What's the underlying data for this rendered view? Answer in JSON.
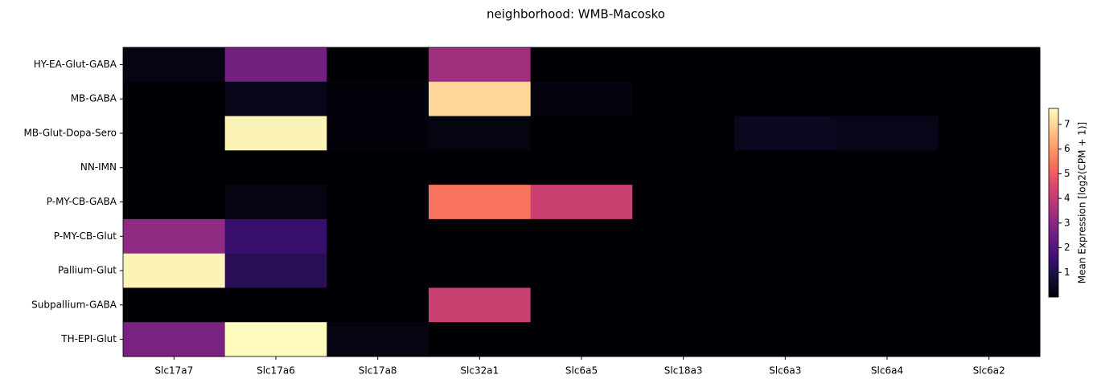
{
  "chart_data": {
    "type": "heatmap",
    "title": "neighborhood: WMB-Macosko",
    "columns": [
      "Slc17a7",
      "Slc17a6",
      "Slc17a8",
      "Slc32a1",
      "Slc6a5",
      "Slc18a3",
      "Slc6a3",
      "Slc6a4",
      "Slc6a2"
    ],
    "rows": [
      "HY-EA-Glut-GABA",
      "MB-GABA",
      "MB-Glut-Dopa-Sero",
      "NN-IMN",
      "P-MY-CB-GABA",
      "P-MY-CB-Glut",
      "Pallium-Glut",
      "Subpallium-GABA",
      "TH-EPI-Glut"
    ],
    "values": [
      [
        0.2,
        2.6,
        0,
        3.4,
        0,
        0,
        0,
        0,
        0
      ],
      [
        0,
        0.3,
        0.1,
        7.0,
        0.15,
        0,
        0,
        0,
        0
      ],
      [
        0,
        7.5,
        0.1,
        0.2,
        0,
        0,
        0.4,
        0.3,
        0
      ],
      [
        0,
        0,
        0,
        0,
        0,
        0,
        0,
        0,
        0
      ],
      [
        0,
        0.2,
        0,
        5.4,
        4.2,
        0,
        0,
        0,
        0
      ],
      [
        3.1,
        1.5,
        0,
        0,
        0,
        0,
        0,
        0,
        0
      ],
      [
        7.5,
        1.2,
        0,
        0,
        0,
        0,
        0,
        0,
        0
      ],
      [
        0,
        0,
        0,
        4.2,
        0,
        0,
        0,
        0,
        0
      ],
      [
        2.7,
        7.6,
        0.2,
        0,
        0,
        0,
        0,
        0,
        0
      ]
    ],
    "colormap": "magma",
    "colorbar_label": "Mean Expression [log2(CPM + 1)]",
    "clim": [
      0,
      7.65
    ],
    "cticks": [
      1,
      2,
      3,
      4,
      5,
      6,
      7
    ]
  }
}
